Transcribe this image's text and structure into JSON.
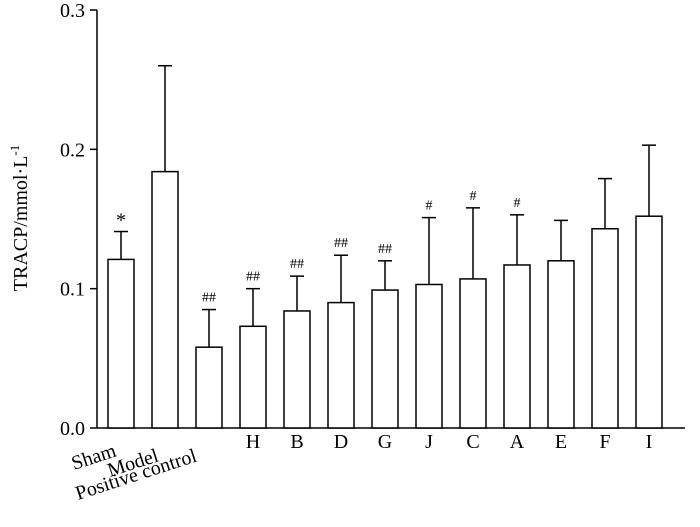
{
  "chart_data": {
    "type": "bar",
    "categories": [
      "Sham",
      "Model",
      "Positive control",
      "H",
      "B",
      "D",
      "G",
      "J",
      "C",
      "A",
      "E",
      "F",
      "I"
    ],
    "values": [
      0.121,
      0.184,
      0.058,
      0.073,
      0.084,
      0.09,
      0.099,
      0.103,
      0.107,
      0.117,
      0.12,
      0.143,
      0.152
    ],
    "error_upper": [
      0.141,
      0.26,
      0.085,
      0.1,
      0.109,
      0.124,
      0.12,
      0.151,
      0.158,
      0.153,
      0.149,
      0.179,
      0.203
    ],
    "annotations": [
      "*",
      "",
      "##",
      "##",
      "##",
      "##",
      "##",
      "#",
      "#",
      "#",
      "",
      "",
      ""
    ],
    "ylabel_main": "TRACP/mmol·L",
    "ylabel_superscript": "-1",
    "ylim": [
      0.0,
      0.3
    ],
    "yticks": [
      "0.0",
      "0.1",
      "0.2",
      "0.3"
    ],
    "ytick_values": [
      0.0,
      0.1,
      0.2,
      0.3
    ],
    "grid": false,
    "legend": "none",
    "bar_fill": "#ffffff",
    "stroke": "#000000"
  }
}
